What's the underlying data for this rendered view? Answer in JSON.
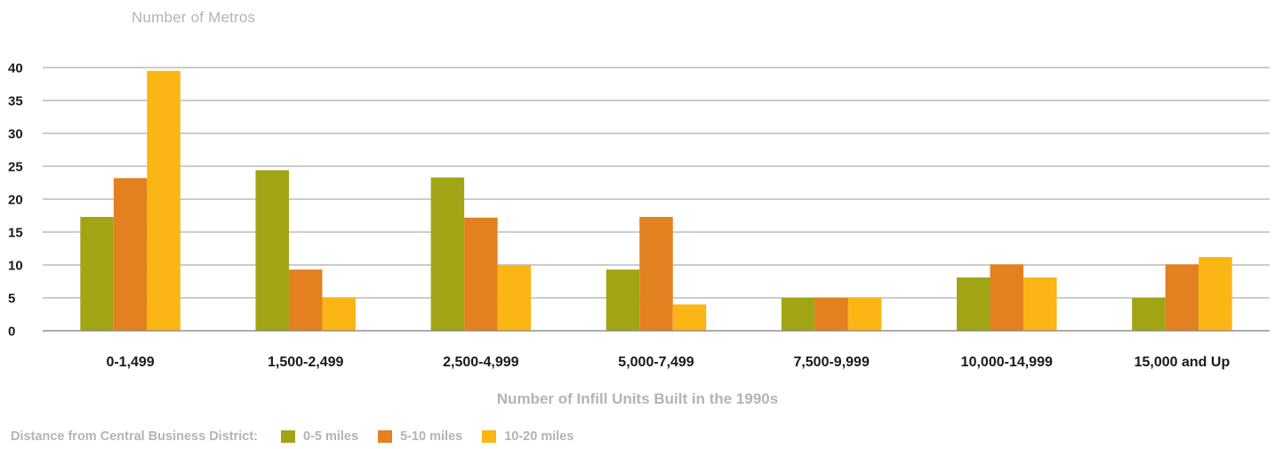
{
  "chart_data": {
    "type": "bar",
    "ylabel": "Number of Metros",
    "xlabel": "Number of Infill Units Built in the 1990s",
    "categories": [
      "0-1,499",
      "1,500-2,499",
      "2,500-4,999",
      "5,000-7,499",
      "7,500-9,999",
      "10,000-14,999",
      "15,000 and Up"
    ],
    "yticks": [
      "0",
      "5",
      "10",
      "15",
      "20",
      "25",
      "30",
      "35",
      "40"
    ],
    "ylim": [
      0,
      40
    ],
    "grid": true,
    "legend_title": "Distance from Central Business District:",
    "legend_position": "bottom-left",
    "series": [
      {
        "name": "0-5 miles",
        "color": "#a1a514",
        "values": [
          17.3,
          24.4,
          23.3,
          9.3,
          5,
          8.1,
          5
        ]
      },
      {
        "name": "5-10 miles",
        "color": "#e3801f",
        "values": [
          23.2,
          9.3,
          17.2,
          17.3,
          5,
          10.1,
          10.1
        ]
      },
      {
        "name": "10-20 miles",
        "color": "#fbb514",
        "values": [
          39.5,
          5,
          10,
          4,
          5,
          8.1,
          11.2
        ]
      }
    ]
  }
}
